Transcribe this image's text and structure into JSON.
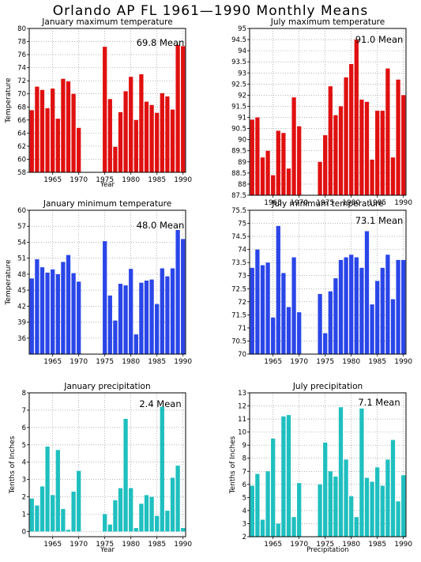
{
  "page_title": "Orlando AP FL  1961—1990 Monthly Means",
  "colors": {
    "red": "#e01010",
    "blue": "#2a46e8",
    "teal": "#1fbfbf"
  },
  "chart_data": [
    {
      "type": "bar",
      "title": "January maximum temperature",
      "xlabel": "Year",
      "ylabel": "Temperature",
      "mean_label": "69.8 Mean",
      "color": "red",
      "xlim": [
        1961,
        1990
      ],
      "xticks": [
        1965,
        1970,
        1975,
        1980,
        1985,
        1990
      ],
      "ylim": [
        58,
        80
      ],
      "yticks": [
        58,
        60,
        62,
        64,
        66,
        68,
        70,
        72,
        74,
        76,
        78,
        80
      ],
      "x": [
        1961,
        1962,
        1963,
        1964,
        1965,
        1966,
        1967,
        1968,
        1969,
        1970,
        1975,
        1976,
        1977,
        1978,
        1979,
        1980,
        1981,
        1982,
        1983,
        1984,
        1985,
        1986,
        1987,
        1988,
        1989,
        1990
      ],
      "values": [
        67.5,
        71.1,
        70.6,
        67.8,
        70.8,
        66.2,
        72.3,
        71.9,
        70.0,
        64.8,
        77.2,
        69.2,
        61.9,
        67.2,
        70.4,
        72.6,
        66.0,
        73.0,
        68.8,
        68.3,
        67.1,
        70.1,
        69.6,
        67.6,
        77.5,
        77.3
      ]
    },
    {
      "type": "bar",
      "title": "July maximum temperature",
      "xlabel": "",
      "ylabel": "",
      "mean_label": "91.0 Mean",
      "color": "red",
      "xlim": [
        1961,
        1990
      ],
      "xticks": [
        1965,
        1970,
        1975,
        1980,
        1985,
        1990
      ],
      "ylim": [
        87.5,
        95
      ],
      "yticks": [
        87.5,
        88,
        88.5,
        89,
        89.5,
        90,
        90.5,
        91,
        91.5,
        92,
        92.5,
        93,
        93.5,
        94,
        94.5,
        95
      ],
      "x": [
        1961,
        1962,
        1963,
        1964,
        1965,
        1966,
        1967,
        1968,
        1969,
        1970,
        1974,
        1975,
        1976,
        1977,
        1978,
        1979,
        1980,
        1981,
        1982,
        1983,
        1984,
        1985,
        1986,
        1987,
        1988,
        1989,
        1990
      ],
      "values": [
        90.9,
        91.0,
        89.2,
        89.5,
        88.4,
        90.4,
        90.3,
        88.7,
        91.9,
        90.6,
        89.0,
        90.2,
        92.4,
        91.1,
        91.5,
        92.8,
        93.4,
        94.5,
        91.8,
        91.7,
        89.1,
        91.3,
        91.3,
        93.2,
        89.2,
        92.7,
        92.0
      ]
    },
    {
      "type": "bar",
      "title": "January minimum temperature",
      "xlabel": "",
      "ylabel": "Temperature",
      "mean_label": "48.0 Mean",
      "color": "blue",
      "xlim": [
        1961,
        1990
      ],
      "xticks": [
        1965,
        1970,
        1975,
        1980,
        1985,
        1990
      ],
      "ylim": [
        33,
        60
      ],
      "yticks": [
        36,
        39,
        42,
        45,
        48,
        51,
        54,
        57,
        60
      ],
      "x": [
        1961,
        1962,
        1963,
        1964,
        1965,
        1966,
        1967,
        1968,
        1969,
        1970,
        1975,
        1976,
        1977,
        1978,
        1979,
        1980,
        1981,
        1982,
        1983,
        1984,
        1985,
        1986,
        1987,
        1988,
        1989,
        1990
      ],
      "values": [
        47.2,
        50.8,
        49.3,
        48.3,
        48.9,
        48.0,
        50.3,
        51.6,
        48.2,
        46.6,
        54.2,
        44.0,
        39.3,
        46.2,
        45.9,
        49.0,
        36.7,
        46.4,
        46.8,
        47.0,
        42.4,
        49.1,
        47.6,
        49.1,
        56.3,
        54.6
      ]
    },
    {
      "type": "bar",
      "title": "July minimum temperature",
      "xlabel": "",
      "ylabel": "",
      "mean_label": "73.1 Mean",
      "color": "blue",
      "xlim": [
        1961,
        1990
      ],
      "xticks": [
        1965,
        1970,
        1975,
        1980,
        1985,
        1990
      ],
      "ylim": [
        70,
        75.5
      ],
      "yticks": [
        70,
        70.5,
        71,
        71.5,
        72,
        72.5,
        73,
        73.5,
        74,
        74.5,
        75,
        75.5
      ],
      "x": [
        1961,
        1962,
        1963,
        1964,
        1965,
        1966,
        1967,
        1968,
        1969,
        1970,
        1974,
        1975,
        1976,
        1977,
        1978,
        1979,
        1980,
        1981,
        1982,
        1983,
        1984,
        1985,
        1986,
        1987,
        1988,
        1989,
        1990
      ],
      "values": [
        73.3,
        74.0,
        73.4,
        73.5,
        71.4,
        74.9,
        73.1,
        71.8,
        73.7,
        71.6,
        72.3,
        70.8,
        72.4,
        72.9,
        73.6,
        73.7,
        73.8,
        73.7,
        73.3,
        74.7,
        71.9,
        72.8,
        73.3,
        73.8,
        72.1,
        73.6,
        73.6
      ]
    },
    {
      "type": "bar",
      "title": "January precipitation",
      "xlabel": "Year",
      "ylabel": "Tenths of Inches",
      "mean_label": "2.4 Mean",
      "color": "teal",
      "xlim": [
        1961,
        1990
      ],
      "xticks": [
        1965,
        1970,
        1975,
        1980,
        1985,
        1990
      ],
      "ylim": [
        -0.3,
        8
      ],
      "yticks": [
        0,
        1,
        2,
        3,
        4,
        5,
        6,
        7,
        8
      ],
      "x": [
        1961,
        1962,
        1963,
        1964,
        1965,
        1966,
        1967,
        1968,
        1969,
        1970,
        1975,
        1976,
        1977,
        1978,
        1979,
        1980,
        1981,
        1982,
        1983,
        1984,
        1985,
        1986,
        1987,
        1988,
        1989,
        1990
      ],
      "values": [
        1.9,
        1.5,
        2.6,
        4.9,
        2.1,
        4.7,
        1.3,
        0.1,
        2.3,
        3.5,
        1.0,
        0.4,
        1.8,
        2.5,
        6.5,
        2.5,
        0.2,
        1.6,
        2.1,
        2.0,
        0.9,
        7.2,
        1.2,
        3.1,
        3.8,
        0.2
      ]
    },
    {
      "type": "bar",
      "title": "July precipitation",
      "xlabel": "Precipitation",
      "ylabel": "Tenths of Inches",
      "mean_label": "7.1 Mean",
      "color": "teal",
      "xlim": [
        1961,
        1990
      ],
      "xticks": [
        1965,
        1970,
        1975,
        1980,
        1985,
        1990
      ],
      "ylim": [
        2,
        13
      ],
      "yticks": [
        2,
        3,
        4,
        5,
        6,
        7,
        8,
        9,
        10,
        11,
        12,
        13
      ],
      "x": [
        1961,
        1962,
        1963,
        1964,
        1965,
        1966,
        1967,
        1968,
        1969,
        1970,
        1974,
        1975,
        1976,
        1977,
        1978,
        1979,
        1980,
        1981,
        1982,
        1983,
        1984,
        1985,
        1986,
        1987,
        1988,
        1989,
        1990
      ],
      "values": [
        5.9,
        6.8,
        3.3,
        7.0,
        9.5,
        3.0,
        11.2,
        11.3,
        3.5,
        6.1,
        6.0,
        9.2,
        7.0,
        6.6,
        11.9,
        7.9,
        5.1,
        3.5,
        11.8,
        6.5,
        6.2,
        7.3,
        5.9,
        7.9,
        9.4,
        4.7,
        6.7
      ]
    }
  ]
}
